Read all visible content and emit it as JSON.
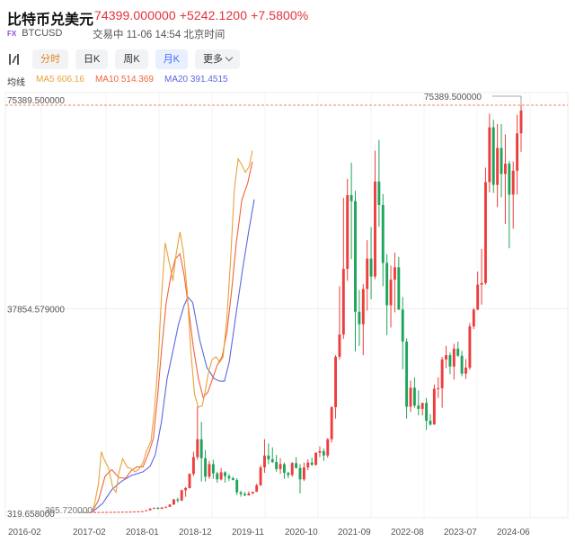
{
  "header": {
    "title": "比特币兑美元",
    "quote": "74399.000000 +5242.1200 +7.5800%",
    "fx_badge": "FX",
    "symbol": "BTCUSD",
    "status": "交易中 11-06 14:54 北京时间"
  },
  "toolbar": {
    "tabs": [
      "分时",
      "日K",
      "周K",
      "月K"
    ],
    "active_tab": "月K",
    "more_label": "更多"
  },
  "ma_legend": {
    "label": "均线",
    "ma5": "MA5 606.16",
    "ma10": "MA10 514.369",
    "ma20": "MA20 391.4515"
  },
  "colors": {
    "up": "#ee3d3d",
    "down": "#1fa45b",
    "ma5": "#e8a23a",
    "ma10": "#f0643a",
    "ma20": "#5b66e0",
    "price_line": "#f08a55",
    "active_tab": "#3b6ef5"
  },
  "chart_data": {
    "type": "candlestick",
    "y_labels": [
      "75389.500000",
      "37854.579000",
      "319.658000"
    ],
    "y_overlap_label": "365.720000",
    "x_labels": [
      "2016-02",
      "2017-02",
      "2018-01",
      "2018-12",
      "2019-11",
      "2020-10",
      "2021-09",
      "2022-08",
      "2023-07",
      "2024-06"
    ],
    "ylim": [
      319.658,
      75389.5
    ],
    "last_price_tag": "75389.500000",
    "candles": [
      [
        373,
        370,
        365,
        372
      ],
      [
        372,
        374,
        368,
        370
      ],
      [
        370,
        377,
        366,
        375
      ],
      [
        375,
        380,
        371,
        378
      ],
      [
        378,
        383,
        374,
        381
      ],
      [
        381,
        388,
        377,
        386
      ],
      [
        386,
        395,
        382,
        392
      ],
      [
        392,
        400,
        388,
        397
      ],
      [
        397,
        405,
        393,
        402
      ],
      [
        402,
        412,
        398,
        408
      ],
      [
        408,
        420,
        404,
        416
      ],
      [
        416,
        430,
        412,
        426
      ],
      [
        426,
        440,
        420,
        435
      ],
      [
        435,
        452,
        430,
        448
      ],
      [
        448,
        470,
        440,
        465
      ],
      [
        465,
        500,
        455,
        490
      ],
      [
        490,
        560,
        480,
        550
      ],
      [
        550,
        720,
        540,
        700
      ],
      [
        700,
        1100,
        680,
        1000
      ],
      [
        1000,
        1200,
        950,
        1150
      ],
      [
        1150,
        1300,
        900,
        970
      ],
      [
        970,
        1250,
        930,
        1230
      ],
      [
        1230,
        1400,
        1100,
        1350
      ],
      [
        1350,
        1800,
        1300,
        1750
      ],
      [
        1750,
        2800,
        1700,
        2700
      ],
      [
        2700,
        3000,
        2100,
        2500
      ],
      [
        2500,
        4500,
        2400,
        4400
      ],
      [
        4400,
        5000,
        3200,
        4800
      ],
      [
        4800,
        7500,
        4700,
        7400
      ],
      [
        7400,
        11500,
        7000,
        10500
      ],
      [
        10500,
        19800,
        10000,
        13800
      ],
      [
        13800,
        17000,
        6000,
        10300
      ],
      [
        10300,
        11800,
        6000,
        6900
      ],
      [
        6900,
        9800,
        6500,
        9200
      ],
      [
        9200,
        10000,
        6500,
        7500
      ],
      [
        7500,
        7800,
        5800,
        6400
      ],
      [
        6400,
        8500,
        6200,
        7700
      ],
      [
        7700,
        7900,
        5800,
        7000
      ],
      [
        7000,
        7400,
        6100,
        6600
      ],
      [
        6600,
        6900,
        6200,
        6300
      ],
      [
        6300,
        6600,
        3500,
        4000
      ],
      [
        4000,
        4300,
        3200,
        3700
      ],
      [
        3700,
        4100,
        3300,
        3450
      ],
      [
        3450,
        4200,
        3400,
        3800
      ],
      [
        3800,
        4100,
        3700,
        4100
      ],
      [
        4100,
        5600,
        4100,
        5300
      ],
      [
        5300,
        9000,
        5200,
        8600
      ],
      [
        8600,
        13800,
        7600,
        10800
      ],
      [
        10800,
        13000,
        9200,
        10100
      ],
      [
        10100,
        12300,
        9400,
        9600
      ],
      [
        9600,
        10900,
        7800,
        8300
      ],
      [
        8300,
        10300,
        7400,
        9200
      ],
      [
        9200,
        9500,
        6500,
        7600
      ],
      [
        7600,
        7800,
        6600,
        7200
      ],
      [
        7200,
        9600,
        6900,
        9400
      ],
      [
        9400,
        10500,
        8400,
        8500
      ],
      [
        8500,
        9200,
        3800,
        6400
      ],
      [
        6400,
        9500,
        6100,
        8600
      ],
      [
        8600,
        10100,
        8100,
        9500
      ],
      [
        9500,
        10400,
        8900,
        9100
      ],
      [
        9100,
        11400,
        8900,
        11300
      ],
      [
        11300,
        12500,
        10500,
        11600
      ],
      [
        11600,
        12100,
        9800,
        10800
      ],
      [
        10800,
        14000,
        10400,
        13800
      ],
      [
        13800,
        19900,
        13200,
        19700
      ],
      [
        19700,
        29300,
        17600,
        29000
      ],
      [
        29000,
        42000,
        28500,
        33100
      ],
      [
        33100,
        58300,
        32300,
        45200
      ],
      [
        45200,
        61800,
        43000,
        58800
      ],
      [
        58800,
        64800,
        47000,
        57700
      ],
      [
        57700,
        59600,
        30000,
        37300
      ],
      [
        37300,
        41300,
        31000,
        35000
      ],
      [
        35000,
        42400,
        29300,
        41500
      ],
      [
        41500,
        50500,
        37500,
        47100
      ],
      [
        47100,
        52900,
        39600,
        43800
      ],
      [
        43800,
        67000,
        43300,
        61300
      ],
      [
        61300,
        69000,
        53000,
        57000
      ],
      [
        57000,
        59000,
        42000,
        46300
      ],
      [
        46300,
        47900,
        33000,
        38500
      ],
      [
        38500,
        45800,
        34400,
        43200
      ],
      [
        43200,
        48200,
        37200,
        45500
      ],
      [
        45500,
        47400,
        37600,
        37700
      ],
      [
        37700,
        40000,
        26700,
        31800
      ],
      [
        31800,
        32400,
        17600,
        19800
      ],
      [
        19800,
        24600,
        18800,
        23300
      ],
      [
        23300,
        25200,
        19600,
        20000
      ],
      [
        20000,
        22800,
        18200,
        19400
      ],
      [
        19400,
        20500,
        18200,
        20500
      ],
      [
        20500,
        21400,
        15500,
        17200
      ],
      [
        17200,
        18400,
        16300,
        16500
      ],
      [
        16500,
        23900,
        16500,
        23100
      ],
      [
        23100,
        25200,
        21400,
        23200
      ],
      [
        23200,
        29000,
        19600,
        28500
      ],
      [
        28500,
        31000,
        26900,
        29300
      ],
      [
        29300,
        29800,
        25800,
        27200
      ],
      [
        27200,
        31400,
        24800,
        30500
      ],
      [
        30500,
        31800,
        29000,
        29200
      ],
      [
        29200,
        30100,
        25400,
        25900
      ],
      [
        25900,
        28600,
        24900,
        27000
      ],
      [
        27000,
        35200,
        26600,
        34600
      ],
      [
        34600,
        38000,
        34100,
        37700
      ],
      [
        37700,
        44700,
        37600,
        42300
      ],
      [
        42300,
        48900,
        38600,
        42600
      ],
      [
        42600,
        63900,
        42300,
        61200
      ],
      [
        61200,
        73800,
        59300,
        71300
      ],
      [
        71300,
        72700,
        59200,
        60700
      ],
      [
        60700,
        71900,
        56600,
        67500
      ],
      [
        67500,
        71900,
        58400,
        62700
      ],
      [
        62700,
        70000,
        53500,
        64600
      ],
      [
        64600,
        65100,
        49000,
        58900
      ],
      [
        58900,
        65000,
        52600,
        63300
      ],
      [
        63300,
        73600,
        58900,
        70200
      ],
      [
        70200,
        75389.5,
        66800,
        74399
      ]
    ],
    "ma5": [
      {
        "x": 0.28,
        "y": 700
      },
      {
        "x": 0.33,
        "y": 2000
      },
      {
        "x": 0.41,
        "y": 5600
      },
      {
        "x": 0.47,
        "y": 11500
      },
      {
        "x": 0.53,
        "y": 10100
      },
      {
        "x": 0.62,
        "y": 8500
      },
      {
        "x": 0.71,
        "y": 5000
      },
      {
        "x": 0.78,
        "y": 4000
      },
      {
        "x": 0.84,
        "y": 7600
      },
      {
        "x": 0.92,
        "y": 10200
      },
      {
        "x": 1.02,
        "y": 8600
      },
      {
        "x": 1.1,
        "y": 8400
      },
      {
        "x": 1.18,
        "y": 7800
      },
      {
        "x": 1.27,
        "y": 8300
      },
      {
        "x": 1.35,
        "y": 9500
      },
      {
        "x": 1.42,
        "y": 11500
      },
      {
        "x": 1.52,
        "y": 13500
      },
      {
        "x": 1.59,
        "y": 19000
      },
      {
        "x": 1.67,
        "y": 28000
      },
      {
        "x": 1.74,
        "y": 40000
      },
      {
        "x": 1.82,
        "y": 50000
      },
      {
        "x": 1.9,
        "y": 46500
      },
      {
        "x": 1.98,
        "y": 43000
      },
      {
        "x": 2.05,
        "y": 48000
      },
      {
        "x": 2.13,
        "y": 52000
      },
      {
        "x": 2.2,
        "y": 48500
      },
      {
        "x": 2.28,
        "y": 41500
      },
      {
        "x": 2.36,
        "y": 30000
      },
      {
        "x": 2.44,
        "y": 22000
      },
      {
        "x": 2.52,
        "y": 19700
      },
      {
        "x": 2.6,
        "y": 20000
      },
      {
        "x": 2.66,
        "y": 22500
      },
      {
        "x": 2.73,
        "y": 26000
      },
      {
        "x": 2.81,
        "y": 28500
      },
      {
        "x": 2.89,
        "y": 29000
      },
      {
        "x": 2.97,
        "y": 28000
      },
      {
        "x": 3.04,
        "y": 29000
      },
      {
        "x": 3.12,
        "y": 36000
      },
      {
        "x": 3.2,
        "y": 47000
      },
      {
        "x": 3.28,
        "y": 60000
      },
      {
        "x": 3.36,
        "y": 65500
      },
      {
        "x": 3.43,
        "y": 64500
      },
      {
        "x": 3.51,
        "y": 63000
      },
      {
        "x": 3.59,
        "y": 64000
      },
      {
        "x": 3.66,
        "y": 67000
      }
    ],
    "ma10": [
      {
        "x": 0.28,
        "y": 500
      },
      {
        "x": 0.41,
        "y": 2500
      },
      {
        "x": 0.55,
        "y": 7000
      },
      {
        "x": 0.69,
        "y": 8200
      },
      {
        "x": 0.84,
        "y": 6700
      },
      {
        "x": 0.98,
        "y": 6600
      },
      {
        "x": 1.1,
        "y": 8000
      },
      {
        "x": 1.22,
        "y": 8700
      },
      {
        "x": 1.35,
        "y": 8700
      },
      {
        "x": 1.48,
        "y": 11500
      },
      {
        "x": 1.57,
        "y": 14000
      },
      {
        "x": 1.65,
        "y": 21000
      },
      {
        "x": 1.74,
        "y": 30000
      },
      {
        "x": 1.84,
        "y": 39000
      },
      {
        "x": 1.94,
        "y": 44000
      },
      {
        "x": 2.03,
        "y": 47000
      },
      {
        "x": 2.13,
        "y": 48000
      },
      {
        "x": 2.22,
        "y": 44000
      },
      {
        "x": 2.31,
        "y": 38000
      },
      {
        "x": 2.41,
        "y": 31000
      },
      {
        "x": 2.52,
        "y": 25000
      },
      {
        "x": 2.62,
        "y": 21500
      },
      {
        "x": 2.72,
        "y": 22500
      },
      {
        "x": 2.82,
        "y": 25000
      },
      {
        "x": 2.92,
        "y": 27500
      },
      {
        "x": 3.02,
        "y": 29000
      },
      {
        "x": 3.12,
        "y": 33500
      },
      {
        "x": 3.22,
        "y": 41000
      },
      {
        "x": 3.32,
        "y": 50000
      },
      {
        "x": 3.44,
        "y": 58000
      },
      {
        "x": 3.56,
        "y": 61000
      },
      {
        "x": 3.66,
        "y": 65000
      }
    ],
    "ma20": [
      {
        "x": 0.28,
        "y": 390
      },
      {
        "x": 0.5,
        "y": 2000
      },
      {
        "x": 0.69,
        "y": 4500
      },
      {
        "x": 0.89,
        "y": 6000
      },
      {
        "x": 1.1,
        "y": 7100
      },
      {
        "x": 1.35,
        "y": 7800
      },
      {
        "x": 1.5,
        "y": 8800
      },
      {
        "x": 1.61,
        "y": 11000
      },
      {
        "x": 1.74,
        "y": 17000
      },
      {
        "x": 1.86,
        "y": 25000
      },
      {
        "x": 1.98,
        "y": 30000
      },
      {
        "x": 2.1,
        "y": 35000
      },
      {
        "x": 2.22,
        "y": 38500
      },
      {
        "x": 2.3,
        "y": 40000
      },
      {
        "x": 2.4,
        "y": 39000
      },
      {
        "x": 2.55,
        "y": 32000
      },
      {
        "x": 2.7,
        "y": 27000
      },
      {
        "x": 2.85,
        "y": 25000
      },
      {
        "x": 2.97,
        "y": 24500
      },
      {
        "x": 3.07,
        "y": 24500
      },
      {
        "x": 3.17,
        "y": 28000
      },
      {
        "x": 3.3,
        "y": 36000
      },
      {
        "x": 3.45,
        "y": 45000
      },
      {
        "x": 3.58,
        "y": 52000
      },
      {
        "x": 3.7,
        "y": 58000
      }
    ]
  }
}
